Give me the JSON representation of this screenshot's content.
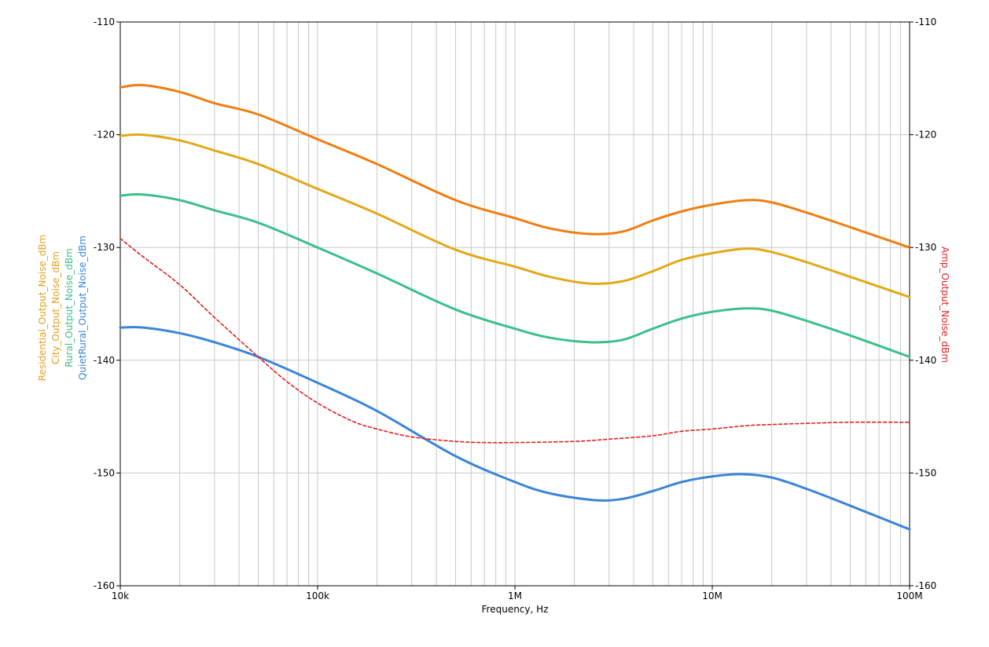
{
  "chart_data": {
    "type": "line",
    "x_scale": "log",
    "xlabel": "Frequency, Hz",
    "xlim": [
      10000,
      100000000
    ],
    "x_ticks": [
      {
        "value": 10000,
        "label": "10k"
      },
      {
        "value": 100000,
        "label": "100k"
      },
      {
        "value": 1000000,
        "label": "1M"
      },
      {
        "value": 10000000,
        "label": "10M"
      },
      {
        "value": 100000000,
        "label": "100M"
      }
    ],
    "ylim": [
      -160,
      -110
    ],
    "y_ticks": [
      -110,
      -120,
      -130,
      -140,
      -150,
      -160
    ],
    "y_right_ticks": [
      -110,
      -120,
      -130,
      -140,
      -150,
      -160
    ],
    "left_axis_labels": [
      {
        "text": "Residential_Output_Noise_dBm",
        "color": "#e0a020"
      },
      {
        "text": "City_Output_Noise_dBm",
        "color": "#e0a020"
      },
      {
        "text": "Rural_Output_Noise_dBm",
        "color": "#3cbf8a"
      },
      {
        "text": "QuietRural_Output_Noise_dBm",
        "color": "#3a85d8"
      }
    ],
    "right_axis_label": {
      "text": "Amp_Output_Noise_dBm",
      "color": "#e02020"
    },
    "grid": "on",
    "series": [
      {
        "name": "Residential_Output_Noise_dBm",
        "color": "#f07d10",
        "style": "solid",
        "x": [
          10000,
          13000,
          20000,
          30000,
          50000,
          100000,
          200000,
          500000,
          1000000,
          1500000,
          2400000,
          3500000,
          5000000,
          7000000,
          10000000,
          15000000,
          20000000,
          30000000,
          50000000,
          100000000
        ],
        "y": [
          -115.8,
          -115.6,
          -116.2,
          -117.2,
          -118.2,
          -120.4,
          -122.6,
          -125.8,
          -127.4,
          -128.3,
          -128.8,
          -128.6,
          -127.6,
          -126.8,
          -126.2,
          -125.8,
          -126.0,
          -126.9,
          -128.2,
          -130.0
        ]
      },
      {
        "name": "City_Output_Noise_dBm",
        "color": "#e3a817",
        "style": "solid",
        "x": [
          10000,
          13000,
          20000,
          30000,
          50000,
          100000,
          200000,
          500000,
          1000000,
          1500000,
          2400000,
          3500000,
          5000000,
          7000000,
          10000000,
          15000000,
          20000000,
          30000000,
          50000000,
          100000000
        ],
        "y": [
          -120.1,
          -120.0,
          -120.5,
          -121.4,
          -122.6,
          -124.8,
          -127.0,
          -130.2,
          -131.7,
          -132.6,
          -133.2,
          -133.0,
          -132.1,
          -131.1,
          -130.5,
          -130.1,
          -130.4,
          -131.3,
          -132.6,
          -134.4
        ]
      },
      {
        "name": "Rural_Output_Noise_dBm",
        "color": "#3cbf8a",
        "style": "solid",
        "x": [
          10000,
          13000,
          20000,
          30000,
          50000,
          100000,
          200000,
          500000,
          1000000,
          1500000,
          2400000,
          3500000,
          5000000,
          7000000,
          10000000,
          15000000,
          20000000,
          30000000,
          50000000,
          100000000
        ],
        "y": [
          -125.4,
          -125.3,
          -125.8,
          -126.7,
          -127.8,
          -130.0,
          -132.3,
          -135.5,
          -137.2,
          -138.0,
          -138.4,
          -138.2,
          -137.2,
          -136.3,
          -135.7,
          -135.4,
          -135.6,
          -136.5,
          -137.8,
          -139.7
        ]
      },
      {
        "name": "QuietRural_Output_Noise_dBm",
        "color": "#3a85d8",
        "style": "solid",
        "x": [
          10000,
          13000,
          20000,
          30000,
          50000,
          100000,
          200000,
          500000,
          1000000,
          1500000,
          2500000,
          3500000,
          5000000,
          7000000,
          10000000,
          14000000,
          20000000,
          30000000,
          50000000,
          100000000
        ],
        "y": [
          -137.1,
          -137.1,
          -137.6,
          -138.4,
          -139.7,
          -142.0,
          -144.5,
          -148.5,
          -150.8,
          -151.8,
          -152.4,
          -152.3,
          -151.6,
          -150.8,
          -150.3,
          -150.1,
          -150.4,
          -151.4,
          -152.9,
          -155.0
        ]
      },
      {
        "name": "Amp_Output_Noise_dBm",
        "color": "#e02020",
        "style": "dashed",
        "x": [
          10000,
          13000,
          20000,
          30000,
          50000,
          70000,
          100000,
          150000,
          200000,
          300000,
          500000,
          700000,
          1000000,
          2000000,
          3000000,
          5000000,
          7000000,
          10000000,
          15000000,
          20000000,
          30000000,
          50000000,
          100000000
        ],
        "y": [
          -129.2,
          -130.8,
          -133.3,
          -136.2,
          -139.7,
          -141.9,
          -143.8,
          -145.4,
          -146.1,
          -146.8,
          -147.2,
          -147.3,
          -147.3,
          -147.2,
          -147.0,
          -146.7,
          -146.3,
          -146.1,
          -145.8,
          -145.7,
          -145.6,
          -145.5,
          -145.5
        ]
      }
    ]
  }
}
